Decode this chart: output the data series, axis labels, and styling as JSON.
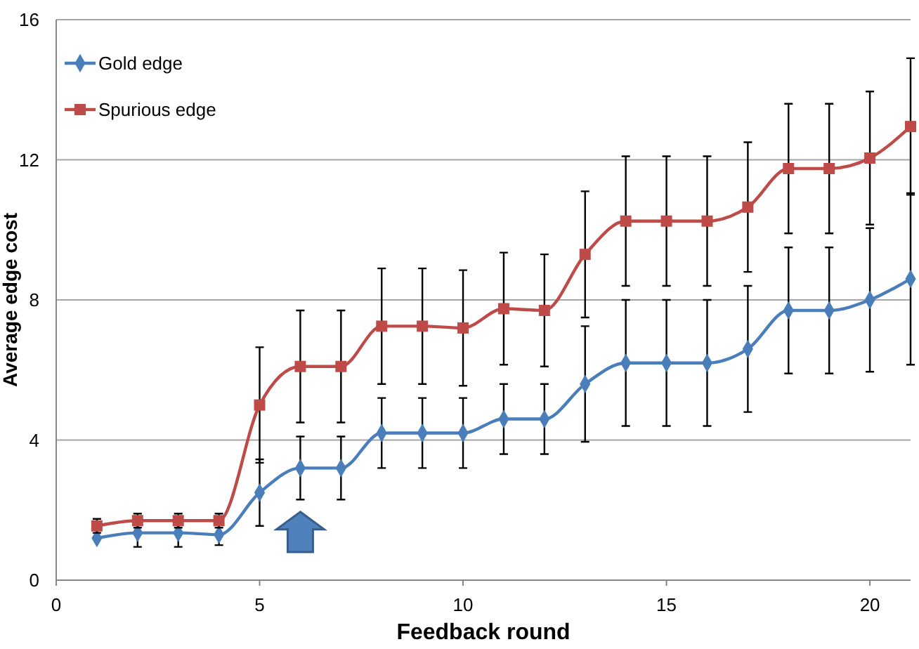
{
  "chart_data": {
    "type": "line",
    "xlabel": "Feedback round",
    "ylabel": "Average edge cost",
    "x": [
      1,
      2,
      3,
      4,
      5,
      6,
      7,
      8,
      9,
      10,
      11,
      12,
      13,
      14,
      15,
      16,
      17,
      18,
      19,
      20,
      21
    ],
    "xlim": [
      0,
      21
    ],
    "xticks": [
      0,
      5,
      10,
      15,
      20
    ],
    "ylim": [
      0,
      16
    ],
    "yticks": [
      0,
      4,
      8,
      12,
      16
    ],
    "grid": "y",
    "legend": "top left",
    "series": [
      {
        "name": "Gold edge",
        "color": "#4a7ebb",
        "marker": "diamond",
        "values": [
          1.2,
          1.35,
          1.35,
          1.3,
          2.5,
          3.2,
          3.2,
          4.2,
          4.2,
          4.2,
          4.6,
          4.6,
          5.6,
          6.2,
          6.2,
          6.2,
          6.6,
          7.7,
          7.7,
          8.0,
          8.6
        ],
        "errors": [
          null,
          0.4,
          0.4,
          0.3,
          0.95,
          0.9,
          0.9,
          1.0,
          1.0,
          1.0,
          1.0,
          1.0,
          1.65,
          1.8,
          1.8,
          1.8,
          1.8,
          1.8,
          1.8,
          2.05,
          2.45
        ]
      },
      {
        "name": "Spurious edge",
        "color": "#be4b48",
        "marker": "square",
        "values": [
          1.55,
          1.7,
          1.7,
          1.7,
          5.0,
          6.1,
          6.1,
          7.25,
          7.25,
          7.2,
          7.75,
          7.7,
          9.3,
          10.25,
          10.25,
          10.25,
          10.65,
          11.75,
          11.75,
          12.05,
          12.95
        ],
        "errors": [
          0.2,
          0.2,
          0.2,
          0.2,
          1.65,
          1.6,
          1.6,
          1.65,
          1.65,
          1.65,
          1.6,
          1.6,
          1.8,
          1.85,
          1.85,
          1.85,
          1.85,
          1.85,
          1.85,
          1.9,
          1.95
        ]
      }
    ]
  }
}
